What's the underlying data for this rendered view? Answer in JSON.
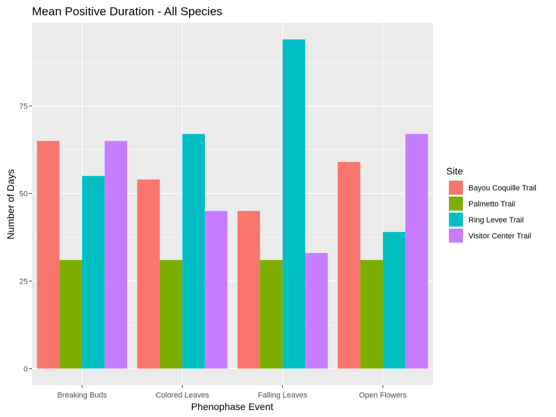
{
  "chart_data": {
    "type": "bar",
    "title": "Mean Positive Duration - All Species",
    "xlabel": "Phenophase Event",
    "ylabel": "Number of Days",
    "categories": [
      "Breaking Buds",
      "Colored Leaves",
      "Falling Leaves",
      "Open Flowers"
    ],
    "series": [
      {
        "name": "Bayou Coquille Trail",
        "values": [
          65,
          54,
          45,
          59
        ],
        "color": "#F8766D"
      },
      {
        "name": "Palmetto Trail",
        "values": [
          31,
          31,
          31,
          31
        ],
        "color": "#7CAE00"
      },
      {
        "name": "Ring Levee Trail",
        "values": [
          55,
          67,
          94,
          39
        ],
        "color": "#00BFC4"
      },
      {
        "name": "Visitor Center Trail",
        "values": [
          65,
          45,
          33,
          67
        ],
        "color": "#C77CFF"
      }
    ],
    "ylim": [
      -4.7,
      98.7
    ],
    "yticks": [
      0,
      25,
      50,
      75
    ],
    "grid": true,
    "legend": {
      "title": "Site",
      "position": "right"
    },
    "colors": {
      "panel_background": "#EBEBEB",
      "gridline": "#FFFFFF",
      "axis_text": "#4D4D4D",
      "text": "#000000"
    }
  }
}
